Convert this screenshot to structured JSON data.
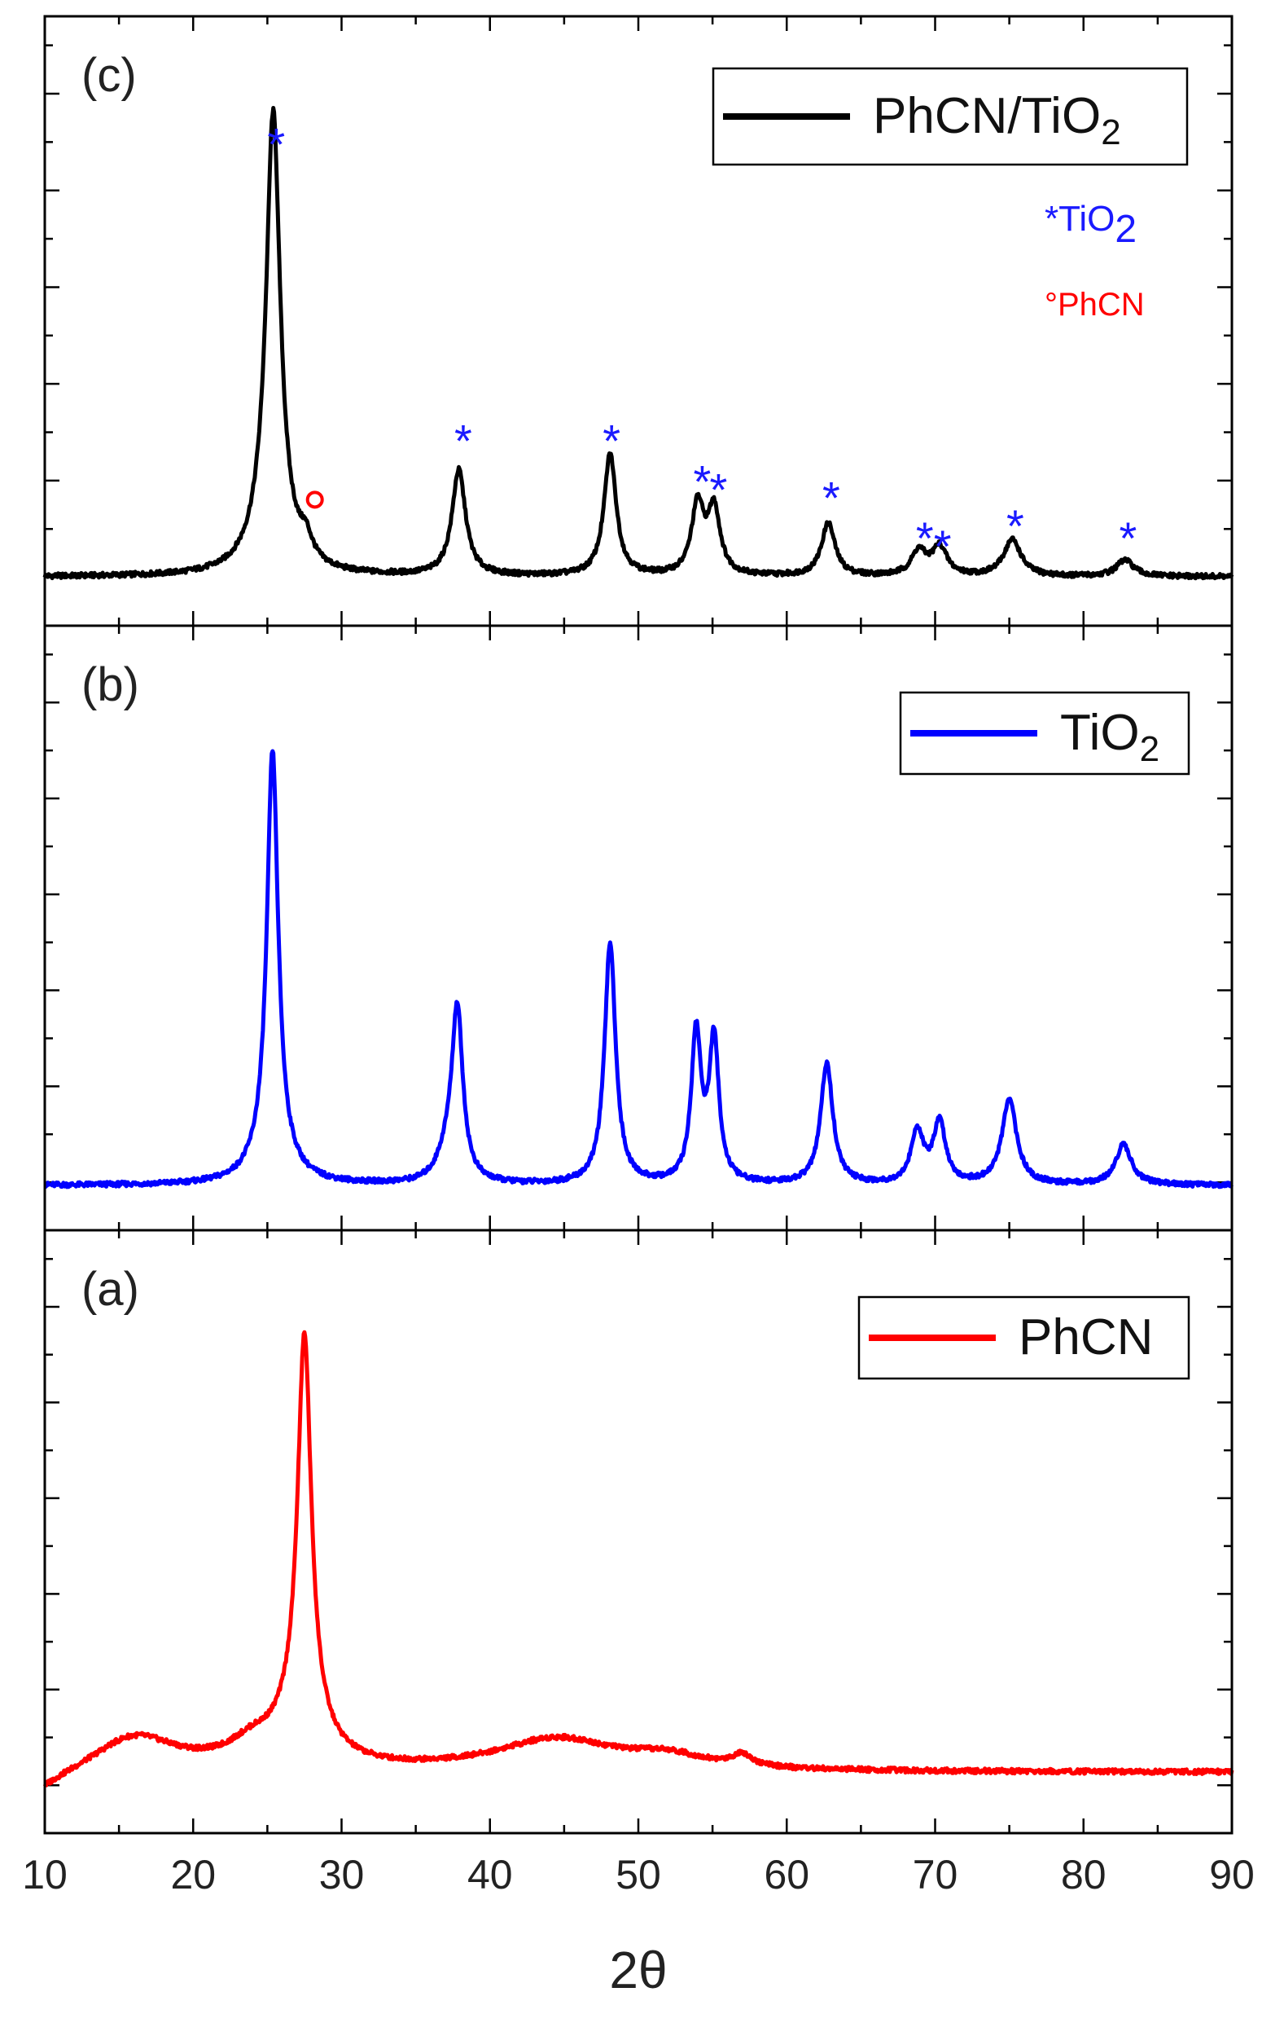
{
  "chart_data": {
    "type": "line",
    "x_axis": {
      "label": "2θ",
      "range": [
        10,
        90
      ],
      "ticks": [
        10,
        20,
        30,
        40,
        50,
        60,
        70,
        80,
        90
      ],
      "tick_labels": [
        "10",
        "20",
        "30",
        "40",
        "50",
        "60",
        "70",
        "80",
        "90"
      ]
    },
    "y_axis": {
      "label": "",
      "tick_labels_shown": false
    },
    "panels": [
      {
        "id": "c",
        "label": "(c)",
        "legend": "PhCN/TiO",
        "legend_subscript": "2",
        "color": "#000000",
        "ylim": [
          0,
          1.3
        ],
        "baseline": 0.03,
        "peaks": [
          {
            "x": 25.4,
            "h": 1.0,
            "w": 0.55
          },
          {
            "x": 25.2,
            "h": 0.15,
            "w": 1.2
          },
          {
            "x": 27.6,
            "h": 0.05,
            "w": 0.5
          },
          {
            "x": 37.9,
            "h": 0.26,
            "w": 0.55
          },
          {
            "x": 48.1,
            "h": 0.3,
            "w": 0.5
          },
          {
            "x": 54.0,
            "h": 0.17,
            "w": 0.5
          },
          {
            "x": 55.1,
            "h": 0.16,
            "w": 0.5
          },
          {
            "x": 62.8,
            "h": 0.13,
            "w": 0.55
          },
          {
            "x": 68.9,
            "h": 0.06,
            "w": 0.6
          },
          {
            "x": 70.3,
            "h": 0.07,
            "w": 0.6
          },
          {
            "x": 75.2,
            "h": 0.09,
            "w": 0.7
          },
          {
            "x": 82.8,
            "h": 0.04,
            "w": 0.7
          }
        ],
        "markers": [
          {
            "x": 25.6,
            "y": 1.1,
            "symbol": "*",
            "color": "#1a1aff"
          },
          {
            "x": 38.2,
            "y": 0.37,
            "symbol": "*",
            "color": "#1a1aff"
          },
          {
            "x": 48.2,
            "y": 0.37,
            "symbol": "*",
            "color": "#1a1aff"
          },
          {
            "x": 54.3,
            "y": 0.27,
            "symbol": "*",
            "color": "#1a1aff"
          },
          {
            "x": 55.4,
            "y": 0.25,
            "symbol": "*",
            "color": "#1a1aff"
          },
          {
            "x": 63.0,
            "y": 0.23,
            "symbol": "*",
            "color": "#1a1aff"
          },
          {
            "x": 69.3,
            "y": 0.13,
            "symbol": "*",
            "color": "#1a1aff"
          },
          {
            "x": 70.5,
            "y": 0.11,
            "symbol": "*",
            "color": "#1a1aff"
          },
          {
            "x": 75.4,
            "y": 0.16,
            "symbol": "*",
            "color": "#1a1aff"
          },
          {
            "x": 83.0,
            "y": 0.13,
            "symbol": "*",
            "color": "#1a1aff"
          },
          {
            "x": 28.2,
            "y": 0.22,
            "symbol": "o",
            "color": "#ff0000"
          }
        ],
        "annotations": [
          {
            "text": "*TiO",
            "sub": "2",
            "color": "#1a1aff"
          },
          {
            "text": "°PhCN",
            "sub": "",
            "color": "#ff0000"
          }
        ]
      },
      {
        "id": "b",
        "label": "(b)",
        "legend": "TiO",
        "legend_subscript": "2",
        "color": "#0000ff",
        "ylim": [
          0,
          1.3
        ],
        "baseline": 0.02,
        "peaks": [
          {
            "x": 25.35,
            "h": 1.0,
            "w": 0.45
          },
          {
            "x": 25.3,
            "h": 0.08,
            "w": 1.3
          },
          {
            "x": 37.8,
            "h": 0.42,
            "w": 0.45
          },
          {
            "x": 37.1,
            "h": 0.06,
            "w": 0.8
          },
          {
            "x": 48.1,
            "h": 0.6,
            "w": 0.45
          },
          {
            "x": 53.9,
            "h": 0.37,
            "w": 0.4
          },
          {
            "x": 55.1,
            "h": 0.35,
            "w": 0.4
          },
          {
            "x": 62.7,
            "h": 0.3,
            "w": 0.5
          },
          {
            "x": 68.8,
            "h": 0.13,
            "w": 0.5
          },
          {
            "x": 70.3,
            "h": 0.15,
            "w": 0.5
          },
          {
            "x": 75.0,
            "h": 0.21,
            "w": 0.6
          },
          {
            "x": 82.7,
            "h": 0.1,
            "w": 0.65
          }
        ]
      },
      {
        "id": "a",
        "label": "(a)",
        "legend": "PhCN",
        "legend_subscript": "",
        "color": "#ff0000",
        "ylim": [
          0,
          1.3
        ],
        "baseline": 0.06,
        "peaks": [
          {
            "x": 27.5,
            "h": 0.95,
            "w": 0.55
          },
          {
            "x": 27.3,
            "h": 0.12,
            "w": 1.8
          },
          {
            "x": 16.0,
            "h": 0.09,
            "w": 3.5
          },
          {
            "x": 24.0,
            "h": 0.05,
            "w": 2.0
          },
          {
            "x": 44.5,
            "h": 0.08,
            "w": 5.0
          },
          {
            "x": 52.0,
            "h": 0.03,
            "w": 3.0
          },
          {
            "x": 57.0,
            "h": 0.03,
            "w": 0.8
          }
        ]
      }
    ]
  }
}
